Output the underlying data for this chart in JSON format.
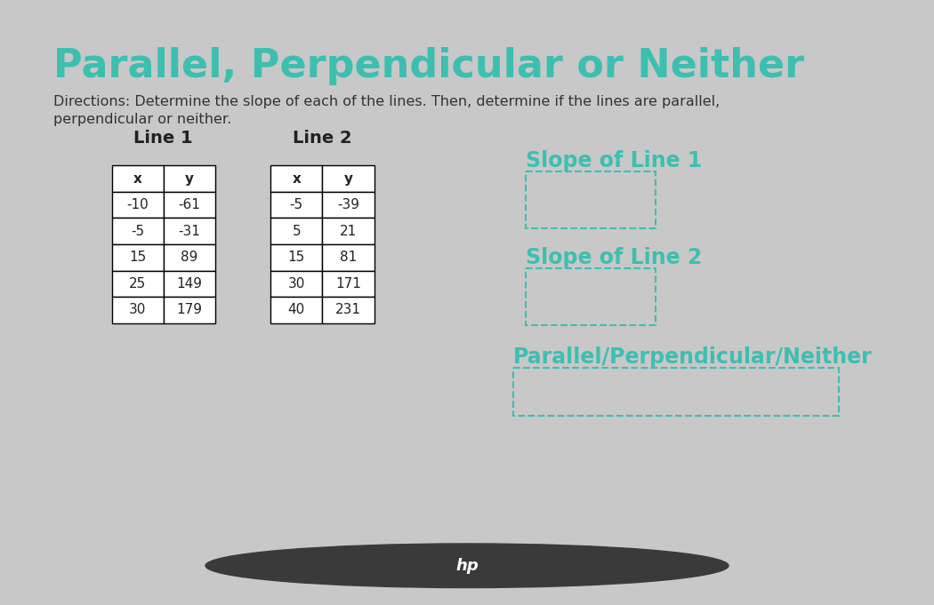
{
  "title": "Parallel, Perpendicular or Neither",
  "title_color": "#3dbfb0",
  "directions_line1": "Directions: Determine the slope of each of the lines. Then, determine if the lines are parallel,",
  "directions_line2": "perpendicular or neither.",
  "directions_color": "#333333",
  "line1_label": "Line 1",
  "line2_label": "Line 2",
  "line1_x": [
    -10,
    -5,
    15,
    25,
    30
  ],
  "line1_y": [
    -61,
    -31,
    89,
    149,
    179
  ],
  "line2_x": [
    -5,
    5,
    15,
    30,
    40
  ],
  "line2_y": [
    -39,
    21,
    81,
    171,
    231
  ],
  "slope_line1_label": "Slope of Line 1",
  "slope_line2_label": "Slope of Line 2",
  "parallel_label": "Parallel/Perpendicular/Neither",
  "teal_color": "#3dbfb0",
  "bg_color": "#dcdcdc",
  "slide_bg_color": "#c8c8c8",
  "bottom_bar_color": "#2a2a2a",
  "box_border_color": "#3dbfb0",
  "table_text_color": "#222222",
  "directions_font_size": 11.5,
  "title_font_size": 32,
  "label_font_size": 14,
  "table_font_size": 11,
  "answer_label_font_size": 17,
  "hp_circle_color": "#3a3a3a"
}
